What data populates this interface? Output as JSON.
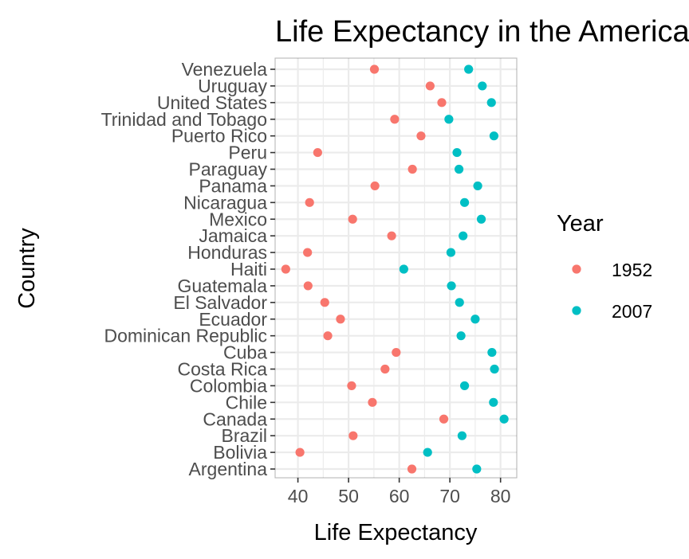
{
  "chart_data": {
    "type": "scatter",
    "title": "Life Expectancy in the Americas",
    "xlabel": "Life Expectancy",
    "ylabel": "Country",
    "xlim": [
      35.5,
      83.2
    ],
    "xticks": [
      40,
      50,
      60,
      70,
      80
    ],
    "grid": true,
    "legend_title": "Year",
    "legend_position": "right",
    "categories": [
      "Argentina",
      "Bolivia",
      "Brazil",
      "Canada",
      "Chile",
      "Colombia",
      "Costa Rica",
      "Cuba",
      "Dominican Republic",
      "Ecuador",
      "El Salvador",
      "Guatemala",
      "Haiti",
      "Honduras",
      "Jamaica",
      "Mexico",
      "Nicaragua",
      "Panama",
      "Paraguay",
      "Peru",
      "Puerto Rico",
      "Trinidad and Tobago",
      "United States",
      "Uruguay",
      "Venezuela"
    ],
    "series": [
      {
        "name": "1952",
        "color": "#F8766D",
        "values": [
          62.5,
          40.4,
          50.9,
          68.8,
          54.7,
          50.6,
          57.2,
          59.4,
          45.9,
          48.4,
          45.3,
          42.0,
          37.6,
          41.9,
          58.5,
          50.8,
          42.3,
          55.2,
          62.6,
          43.9,
          64.3,
          59.1,
          68.4,
          66.1,
          55.1
        ]
      },
      {
        "name": "2007",
        "color": "#00BFC4",
        "values": [
          75.3,
          65.6,
          72.4,
          80.7,
          78.6,
          72.9,
          78.8,
          78.3,
          72.2,
          75.0,
          71.9,
          70.3,
          60.9,
          70.2,
          72.6,
          76.2,
          72.9,
          75.5,
          71.8,
          71.4,
          78.7,
          69.8,
          78.2,
          76.4,
          73.7
        ]
      }
    ]
  }
}
